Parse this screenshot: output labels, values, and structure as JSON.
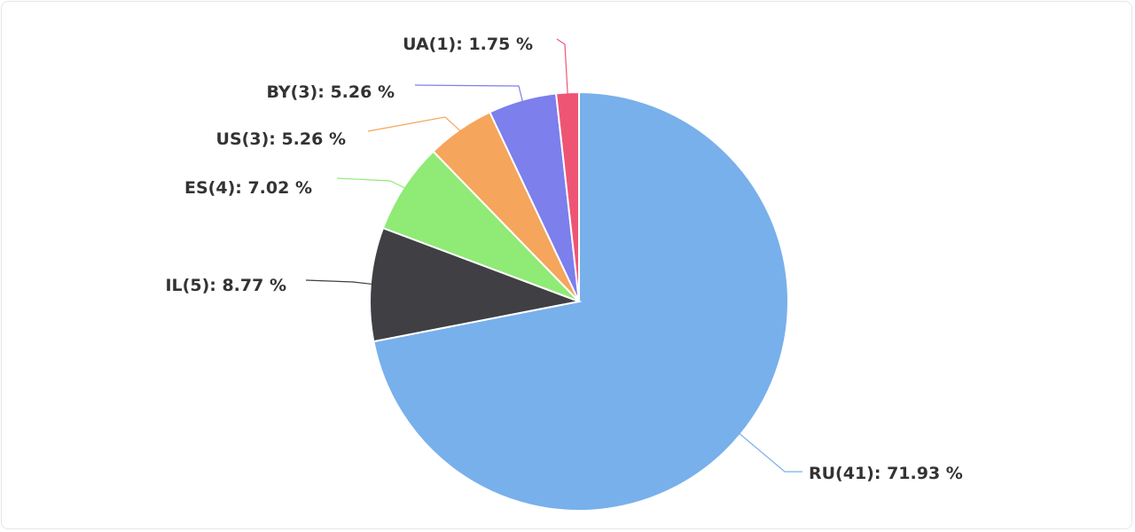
{
  "chart_data": {
    "type": "pie",
    "slices": [
      {
        "label": "RU(41): 71.93 %",
        "name": "RU",
        "count": 41,
        "percent": 71.93,
        "color": "#78b0eb"
      },
      {
        "label": "IL(5): 8.77 %",
        "name": "IL",
        "count": 5,
        "percent": 8.77,
        "color": "#3f3f44"
      },
      {
        "label": "ES(4): 7.02 %",
        "name": "ES",
        "count": 4,
        "percent": 7.02,
        "color": "#90ea76"
      },
      {
        "label": "US(3): 5.26 %",
        "name": "US",
        "count": 3,
        "percent": 5.26,
        "color": "#f5a55c"
      },
      {
        "label": "BY(3): 5.26 %",
        "name": "BY",
        "count": 3,
        "percent": 5.26,
        "color": "#7c7fec"
      },
      {
        "label": "UA(1): 1.75 %",
        "name": "UA",
        "count": 1,
        "percent": 1.75,
        "color": "#ee5575"
      }
    ]
  }
}
